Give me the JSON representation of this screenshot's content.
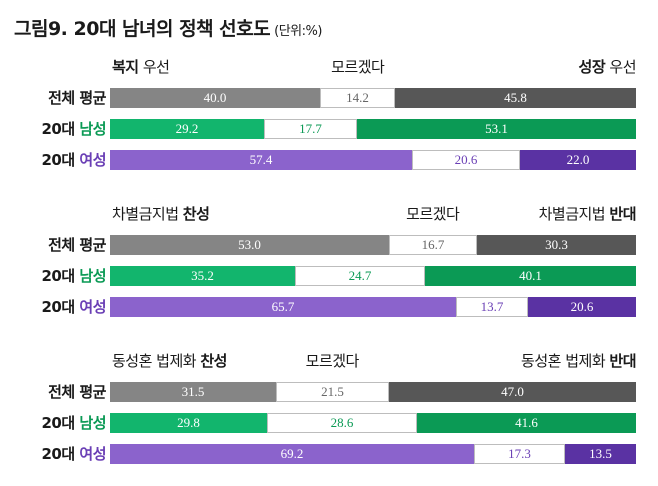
{
  "title": "그림9. 20대 남녀의 정책 선호도",
  "unit": "(단위:%)",
  "colors": {
    "total_left": "#858585",
    "total_right": "#575757",
    "male_left": "#12b56d",
    "male_right": "#0b9a55",
    "female_left": "#8b63cc",
    "female_right": "#5a32a3",
    "mid_text": "#666666",
    "mid_text_male": "#0b9a55",
    "mid_text_female": "#6a3fb5"
  },
  "row_labels": {
    "total": "전체 평균",
    "age": "20대",
    "male": "남성",
    "female": "여성"
  },
  "sections": [
    {
      "left": {
        "normal": "",
        "bold": "복지",
        "after": " 우선"
      },
      "mid": "모르겠다",
      "right": {
        "normal": "",
        "bold": "성장",
        "after": " 우선"
      }
    },
    {
      "left": {
        "normal": "차별금지법 ",
        "bold": "찬성",
        "after": ""
      },
      "mid": "모르겠다",
      "right": {
        "normal": "차별금지법 ",
        "bold": "반대",
        "after": ""
      }
    },
    {
      "left": {
        "normal": "동성혼 법제화 ",
        "bold": "찬성",
        "after": ""
      },
      "mid": "모르겠다",
      "right": {
        "normal": "동성혼 법제화 ",
        "bold": "반대",
        "after": ""
      }
    }
  ],
  "chart_data": {
    "type": "bar",
    "stacked": true,
    "title": "그림9. 20대 남녀의 정책 선호도",
    "unit": "%",
    "categories": [
      "전체 평균",
      "20대 남성",
      "20대 여성"
    ],
    "panels": [
      {
        "name": "복지 우선 / 모르겠다 / 성장 우선",
        "series": [
          {
            "name": "복지 우선",
            "values": [
              40.0,
              29.2,
              57.4
            ]
          },
          {
            "name": "모르겠다",
            "values": [
              14.2,
              17.7,
              20.6
            ]
          },
          {
            "name": "성장 우선",
            "values": [
              45.8,
              53.1,
              22.0
            ]
          }
        ]
      },
      {
        "name": "차별금지법 찬성 / 모르겠다 / 차별금지법 반대",
        "series": [
          {
            "name": "차별금지법 찬성",
            "values": [
              53.0,
              35.2,
              65.7
            ]
          },
          {
            "name": "모르겠다",
            "values": [
              16.7,
              24.7,
              13.7
            ]
          },
          {
            "name": "차별금지법 반대",
            "values": [
              30.3,
              40.1,
              20.6
            ]
          }
        ]
      },
      {
        "name": "동성혼 법제화 찬성 / 모르겠다 / 동성혼 법제화 반대",
        "series": [
          {
            "name": "동성혼 법제화 찬성",
            "values": [
              31.5,
              29.8,
              69.2
            ]
          },
          {
            "name": "모르겠다",
            "values": [
              21.5,
              28.6,
              17.3
            ]
          },
          {
            "name": "동성혼 법제화 반대",
            "values": [
              47.0,
              41.6,
              13.5
            ]
          }
        ]
      }
    ]
  }
}
